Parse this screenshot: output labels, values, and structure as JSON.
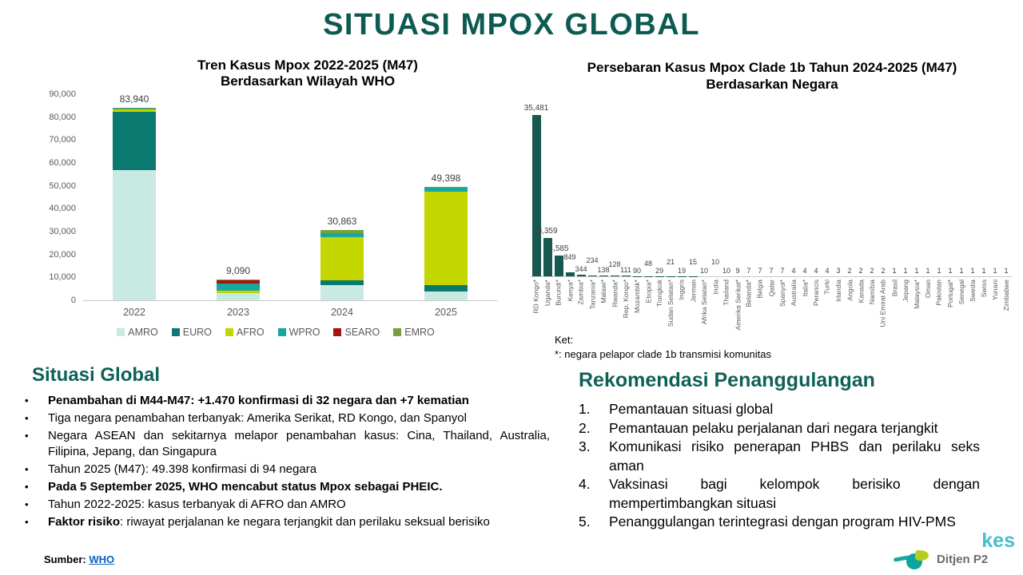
{
  "page": {
    "title": "SITUASI MPOX GLOBAL"
  },
  "colors": {
    "accent_teal": "#0E6158",
    "title_teal": "#0D5A52",
    "bar_teal": "#17594F",
    "link_blue": "#0563C1",
    "watermark_cyan": "#4ABCCB",
    "axis_gray": "#595959"
  },
  "chart_data": [
    {
      "type": "bar",
      "stacked": true,
      "title_lines": [
        "Tren Kasus Mpox 2022-2025 (M47)",
        "Berdasarkan Wilayah WHO"
      ],
      "categories": [
        "2022",
        "2023",
        "2024",
        "2025"
      ],
      "totals": [
        83940,
        9090,
        30863,
        49398
      ],
      "totals_labels": [
        "83,940",
        "9,090",
        "30,863",
        "49,398"
      ],
      "series": [
        {
          "name": "AMRO",
          "color": "#C9E9E3",
          "values": [
            57000,
            3000,
            6500,
            4000
          ]
        },
        {
          "name": "EURO",
          "color": "#0A7A71",
          "values": [
            25300,
            200,
            2300,
            2500
          ]
        },
        {
          "name": "AFRO",
          "color": "#C3D600",
          "values": [
            1100,
            1100,
            18600,
            41100
          ]
        },
        {
          "name": "WPRO",
          "color": "#17A79F",
          "values": [
            300,
            3090,
            1800,
            1550
          ]
        },
        {
          "name": "SEARO",
          "color": "#AA1111",
          "values": [
            40,
            1500,
            100,
            48
          ]
        },
        {
          "name": "EMRO",
          "color": "#74A23E",
          "values": [
            200,
            200,
            1563,
            200
          ]
        }
      ],
      "ylim": [
        0,
        90000
      ],
      "yticks": [
        "0",
        "10,000",
        "20,000",
        "30,000",
        "40,000",
        "50,000",
        "60,000",
        "70,000",
        "80,000",
        "90,000"
      ],
      "grid": false,
      "legend_position": "bottom"
    },
    {
      "type": "bar",
      "title_lines": [
        "Persebaran Kasus Mpox Clade 1b Tahun 2024-2025 (M47)",
        "Berdasarkan Negara"
      ],
      "categories": [
        "RD Kongo*",
        "Uganda*",
        "Burundi*",
        "Kenya*",
        "Zambia*",
        "Tanzania*",
        "Malawi*",
        "Rwanda*",
        "Rep. Kongo*",
        "Mozambik*",
        "Etiopia*",
        "Tiongkok",
        "Sudan Selatan*",
        "Inggris",
        "Jerman",
        "Afrika Selatan*",
        "India",
        "Thailand",
        "Amerika Serikat*",
        "Belanda*",
        "Belgia",
        "Qatar",
        "Spanyol*",
        "Australia",
        "Italia*",
        "Perancis",
        "Turki",
        "Irlandia",
        "Angola",
        "Kanada",
        "Namibia",
        "Uni Emirat Arab",
        "Brasil",
        "Jepang",
        "Malaysia*",
        "Oman",
        "Pakistan",
        "Portugal*",
        "Senegal",
        "Swedia",
        "Swiss",
        "Yunani",
        "Zimbabwe"
      ],
      "values": [
        35481,
        8359,
        4585,
        849,
        344,
        234,
        138,
        128,
        111,
        90,
        48,
        29,
        21,
        19,
        15,
        10,
        10,
        10,
        9,
        7,
        7,
        7,
        7,
        4,
        4,
        4,
        4,
        3,
        2,
        2,
        2,
        2,
        1,
        1,
        1,
        1,
        1,
        1,
        1,
        1,
        1,
        1,
        1
      ],
      "value_labels": [
        "35,481",
        "8,359",
        "4,585",
        "849",
        "344",
        "234",
        "138",
        "128",
        "111",
        "90",
        "48",
        "29",
        "21",
        "19",
        "15",
        "10",
        "10",
        "10",
        "9",
        "7",
        "7",
        "7",
        "7",
        "4",
        "4",
        "4",
        "4",
        "3",
        "2",
        "2",
        "2",
        "2",
        "1",
        "1",
        "1",
        "1",
        "1",
        "1",
        "1",
        "1",
        "1",
        "1",
        "1"
      ],
      "bar_color": "#17594F",
      "ylim": [
        0,
        35481
      ],
      "grid": false,
      "note_label": "Ket:",
      "note": "*: negara pelapor clade 1b transmisi komunitas"
    }
  ],
  "sections": {
    "situasi": {
      "heading": "Situasi Global",
      "bullets": [
        {
          "bold": true,
          "text": "Penambahan di M44-M47: +1.470 konfirmasi di 32 negara dan +7 kematian"
        },
        {
          "bold": false,
          "text": "Tiga negara penambahan terbanyak: Amerika Serikat, RD Kongo, dan Spanyol"
        },
        {
          "bold": false,
          "text": "Negara ASEAN dan sekitarnya melapor penambahan kasus: Cina, Thailand, Australia, Filipina, Jepang, dan Singapura"
        },
        {
          "bold": false,
          "text": "Tahun 2025 (M47): 49.398 konfirmasi di 94 negara"
        },
        {
          "bold": true,
          "text": "Pada 5 September 2025, WHO mencabut status Mpox sebagai PHEIC."
        },
        {
          "bold": false,
          "text": "Tahun 2022-2025: kasus terbanyak di AFRO dan AMRO"
        },
        {
          "bold": false,
          "bold_prefix": "Faktor risiko",
          "text": ": riwayat perjalanan ke negara terjangkit dan perilaku seksual berisiko"
        }
      ]
    },
    "rekomendasi": {
      "heading": "Rekomendasi Penanggulangan",
      "items": [
        "Pemantauan situasi global",
        "Pemantauan pelaku perjalanan dari negara terjangkit",
        "Komunikasi risiko penerapan PHBS dan perilaku seks aman",
        "Vaksinasi bagi kelompok berisiko dengan mempertimbangkan situasi",
        "Penanggulangan terintegrasi dengan program HIV-PMS"
      ]
    }
  },
  "footer": {
    "source_label": "Sumber:",
    "source_link": "WHO",
    "logo_text": "Ditjen P2",
    "watermark": "kes"
  }
}
